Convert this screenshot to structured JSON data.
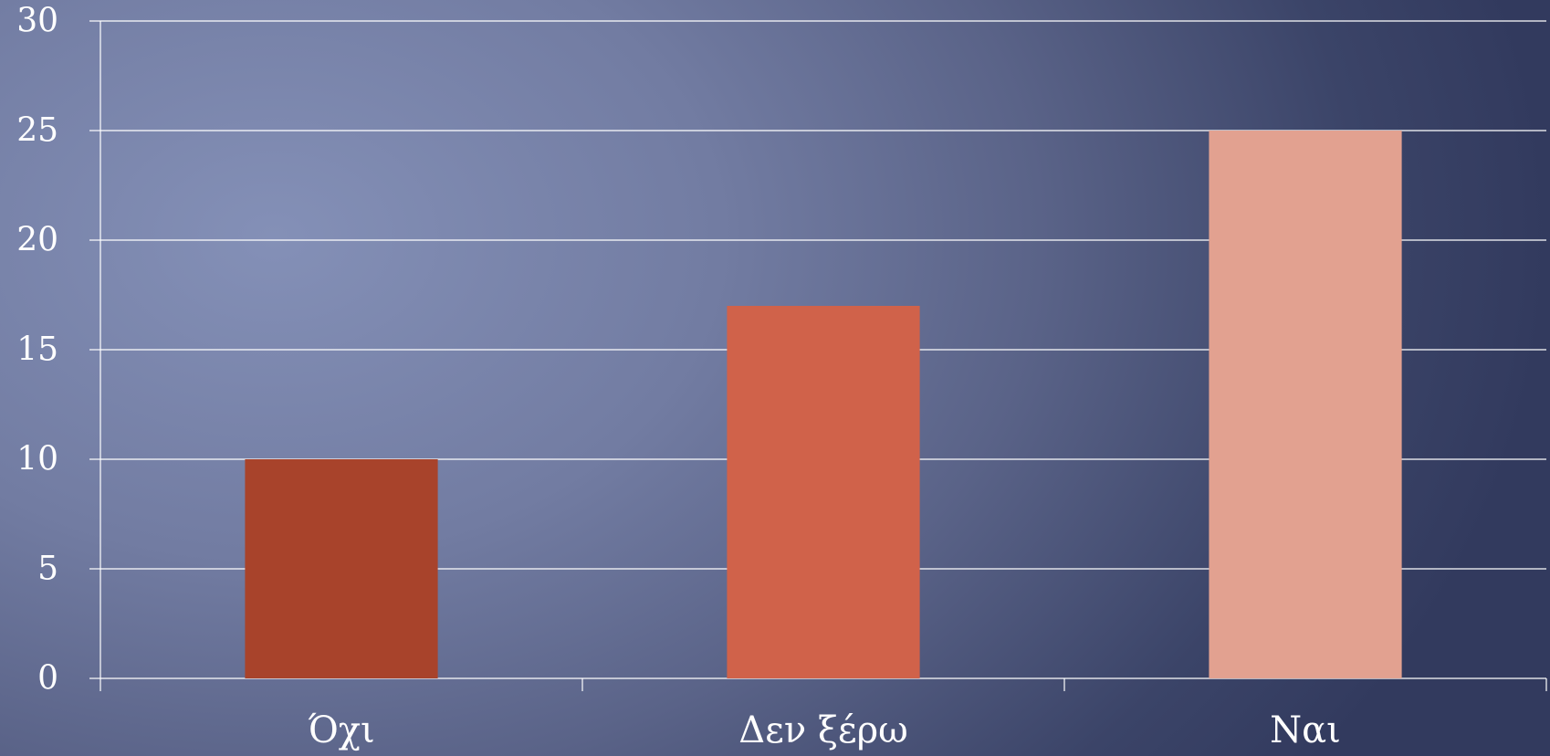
{
  "chart_data": {
    "type": "bar",
    "categories": [
      "Όχι",
      "Δεν ξέρω",
      "Ναι"
    ],
    "values": [
      10,
      17,
      25
    ],
    "colors": [
      "#a8432b",
      "#d0624a",
      "#e2a190"
    ],
    "ylim": [
      0,
      30
    ],
    "yticks": [
      "0",
      "5",
      "10",
      "15",
      "20",
      "25",
      "30"
    ],
    "grid": true,
    "gridColor": "#ffffff",
    "legend": "none"
  }
}
